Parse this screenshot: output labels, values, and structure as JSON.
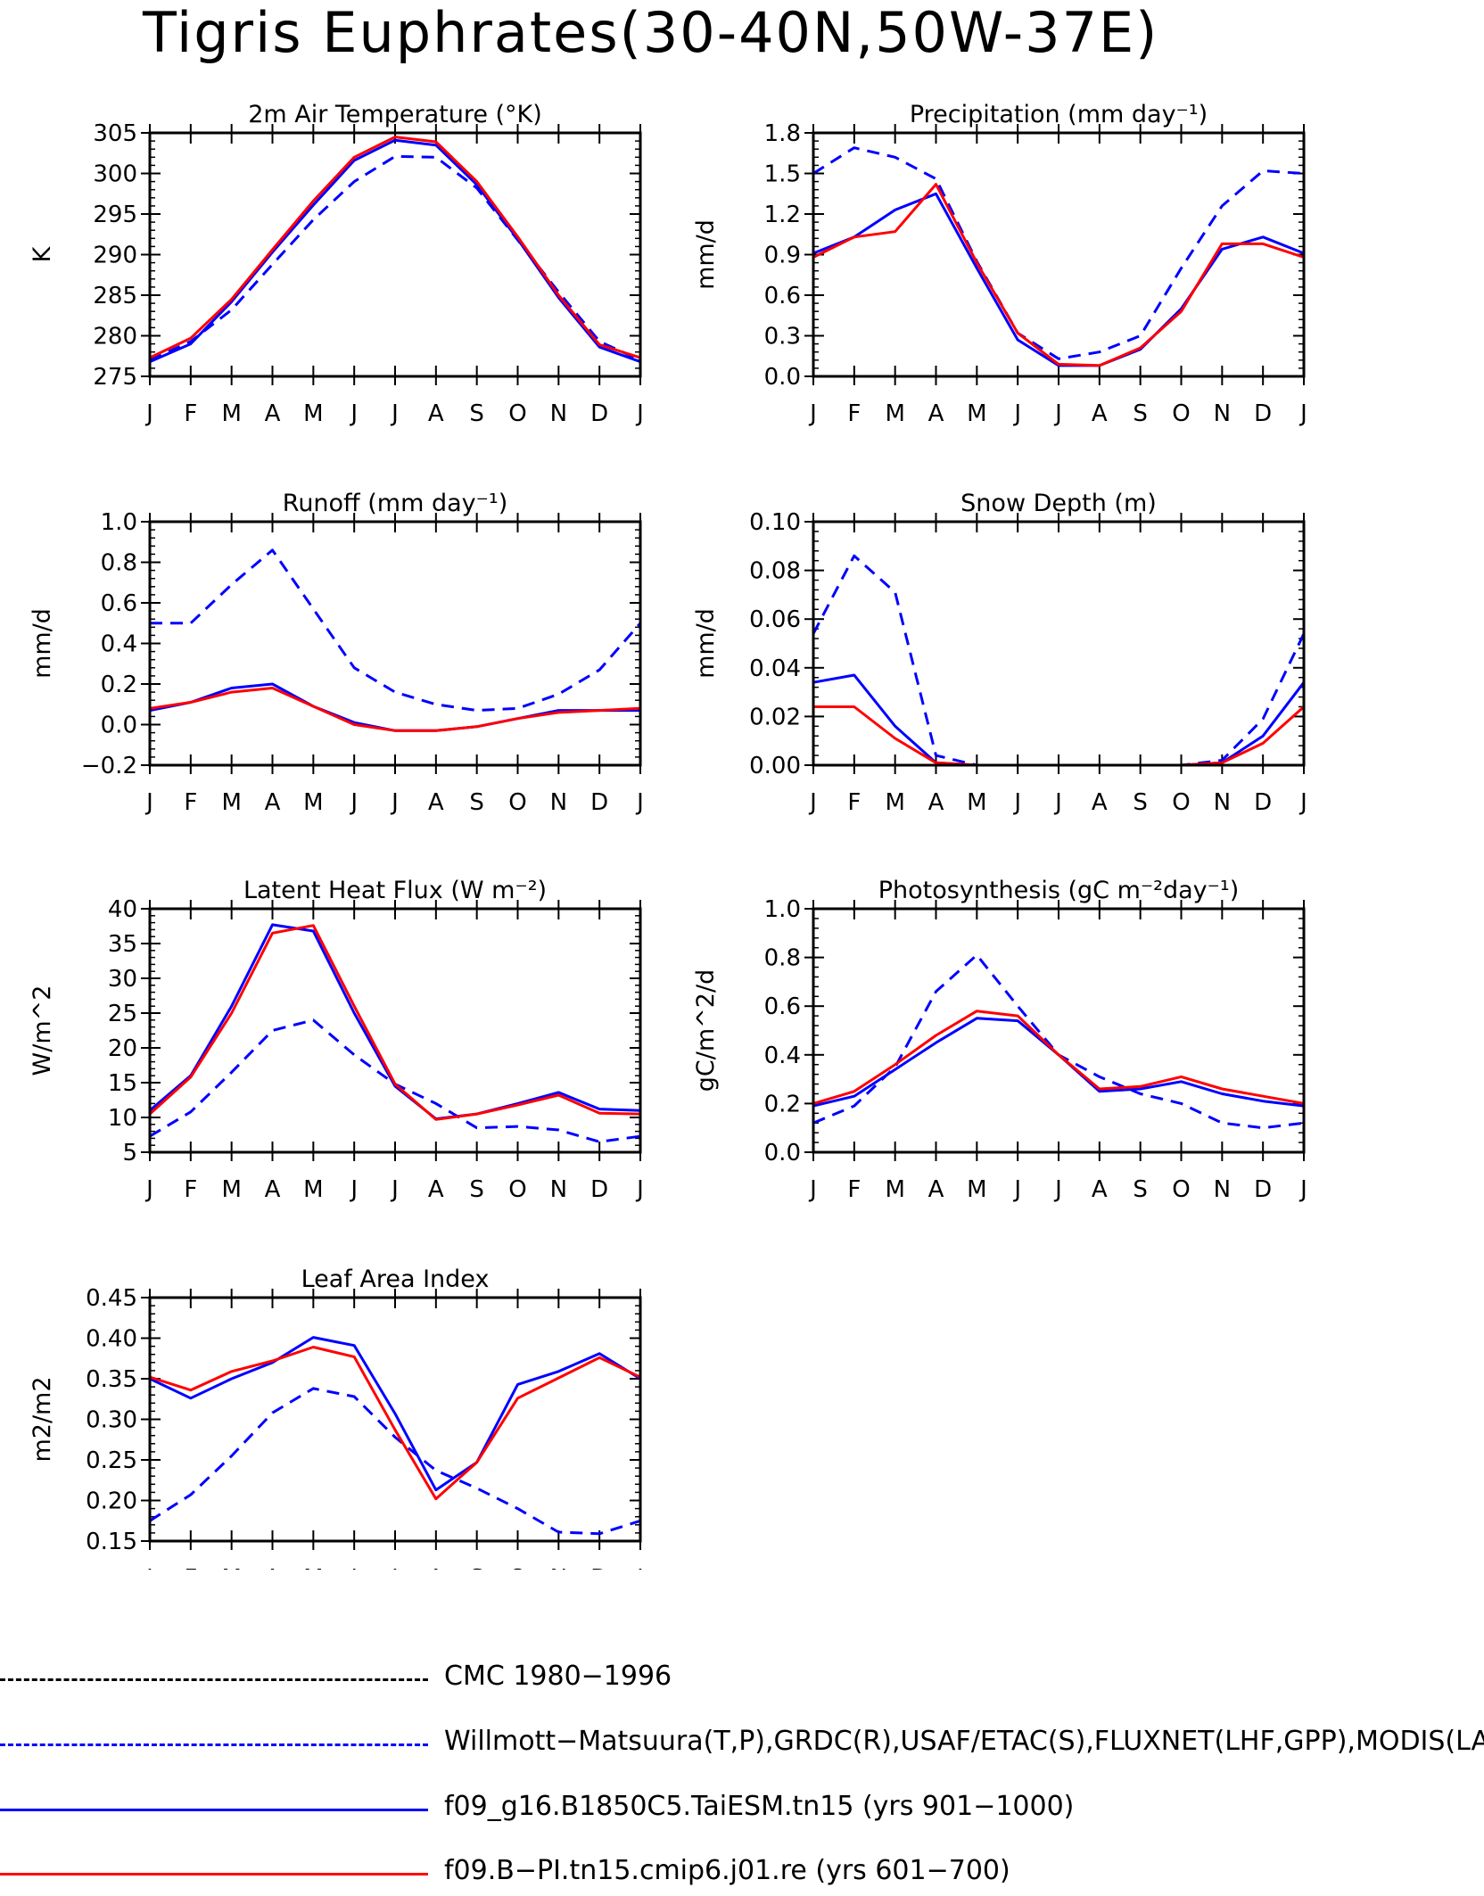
{
  "page": {
    "title": "Tigris Euphrates(30-40N,50W-37E)"
  },
  "legend": [
    {
      "label": "CMC 1980−1996",
      "color": "#000000",
      "dash": "dashed"
    },
    {
      "label": "Willmott−Matsuura(T,P),GRDC(R),USAF/ETAC(S),FLUXNET(LHF,GPP),MODIS(LAI)",
      "color": "#0000ff",
      "dash": "dashed"
    },
    {
      "label": "f09_g16.B1850C5.TaiESM.tn15 (yrs 901−1000)",
      "color": "#0000ff",
      "dash": "solid"
    },
    {
      "label": "f09.B−PI.tn15.cmip6.j01.re (yrs 601−700)",
      "color": "#ff0000",
      "dash": "solid"
    }
  ],
  "chart_data": [
    {
      "type": "line",
      "title": "2m Air Temperature (°K)",
      "ylabel": "K",
      "categories": [
        "J",
        "F",
        "M",
        "A",
        "M",
        "J",
        "J",
        "A",
        "S",
        "O",
        "N",
        "D",
        "J"
      ],
      "ylim": [
        275,
        305
      ],
      "yticks": [
        275,
        280,
        285,
        290,
        295,
        300,
        305
      ],
      "yticklabels": [
        "275",
        "280",
        "285",
        "290",
        "295",
        "300",
        "305"
      ],
      "series": [
        {
          "style": "blue-dashed",
          "values": [
            277.0,
            279.3,
            283.2,
            288.8,
            294.3,
            299.0,
            302.1,
            302.0,
            298.2,
            291.8,
            285.4,
            279.3,
            277.0
          ]
        },
        {
          "style": "blue-solid",
          "values": [
            276.8,
            279.0,
            284.2,
            290.3,
            296.1,
            301.6,
            304.1,
            303.5,
            298.6,
            291.9,
            284.7,
            278.6,
            276.8
          ]
        },
        {
          "style": "red-solid",
          "values": [
            277.3,
            279.7,
            284.5,
            290.6,
            296.6,
            302.0,
            304.5,
            303.9,
            299.0,
            292.2,
            285.0,
            278.9,
            277.3
          ]
        }
      ]
    },
    {
      "type": "line",
      "title": "Precipitation (mm day⁻¹)",
      "ylabel": "mm/d",
      "categories": [
        "J",
        "F",
        "M",
        "A",
        "M",
        "J",
        "J",
        "A",
        "S",
        "O",
        "N",
        "D",
        "J"
      ],
      "ylim": [
        0,
        1.8
      ],
      "yticks": [
        0,
        0.3,
        0.6,
        0.9,
        1.2,
        1.5,
        1.8
      ],
      "yticklabels": [
        "0.0",
        "0.3",
        "0.6",
        "0.9",
        "1.2",
        "1.5",
        "1.8"
      ],
      "series": [
        {
          "style": "blue-dashed",
          "values": [
            1.5,
            1.69,
            1.62,
            1.46,
            0.85,
            0.32,
            0.13,
            0.18,
            0.3,
            0.8,
            1.26,
            1.52,
            1.5
          ]
        },
        {
          "style": "blue-solid",
          "values": [
            0.91,
            1.03,
            1.23,
            1.35,
            0.8,
            0.27,
            0.08,
            0.08,
            0.2,
            0.5,
            0.94,
            1.03,
            0.91
          ]
        },
        {
          "style": "red-solid",
          "values": [
            0.88,
            1.03,
            1.07,
            1.42,
            0.84,
            0.32,
            0.09,
            0.08,
            0.21,
            0.48,
            0.98,
            0.98,
            0.88
          ]
        }
      ]
    },
    {
      "type": "line",
      "title": "Runoff (mm day⁻¹)",
      "ylabel": "mm/d",
      "categories": [
        "J",
        "F",
        "M",
        "A",
        "M",
        "J",
        "J",
        "A",
        "S",
        "O",
        "N",
        "D",
        "J"
      ],
      "ylim": [
        -0.2,
        1.0
      ],
      "yticks": [
        -0.2,
        0,
        0.2,
        0.4,
        0.6,
        0.8,
        1.0
      ],
      "yticklabels": [
        "−0.2",
        "0.0",
        "0.2",
        "0.4",
        "0.6",
        "0.8",
        "1.0"
      ],
      "series": [
        {
          "style": "blue-dashed",
          "values": [
            0.5,
            0.5,
            0.69,
            0.86,
            0.57,
            0.28,
            0.16,
            0.1,
            0.07,
            0.08,
            0.15,
            0.27,
            0.5
          ]
        },
        {
          "style": "blue-solid",
          "values": [
            0.07,
            0.11,
            0.18,
            0.2,
            0.09,
            0.01,
            -0.03,
            -0.03,
            -0.01,
            0.03,
            0.07,
            0.07,
            0.07
          ]
        },
        {
          "style": "red-solid",
          "values": [
            0.08,
            0.11,
            0.16,
            0.18,
            0.09,
            0.0,
            -0.03,
            -0.03,
            -0.01,
            0.03,
            0.06,
            0.07,
            0.08
          ]
        }
      ]
    },
    {
      "type": "line",
      "title": "Snow Depth (m)",
      "ylabel": "mm/d",
      "categories": [
        "J",
        "F",
        "M",
        "A",
        "M",
        "J",
        "J",
        "A",
        "S",
        "O",
        "N",
        "D",
        "J"
      ],
      "ylim": [
        0,
        0.1
      ],
      "yticks": [
        0,
        0.02,
        0.04,
        0.06,
        0.08,
        0.1
      ],
      "yticklabels": [
        "0.00",
        "0.02",
        "0.04",
        "0.06",
        "0.08",
        "0.10"
      ],
      "series": [
        {
          "style": "black-dashed",
          "values": [
            0,
            0,
            0,
            0,
            0,
            0,
            0,
            0,
            0,
            0,
            0,
            0,
            0
          ]
        },
        {
          "style": "blue-dashed",
          "values": [
            0.054,
            0.086,
            0.071,
            0.004,
            0.0,
            0.0,
            0.0,
            0.0,
            0.0,
            0.0,
            0.002,
            0.019,
            0.054
          ]
        },
        {
          "style": "blue-solid",
          "values": [
            0.034,
            0.037,
            0.016,
            0.001,
            0.0,
            0.0,
            0.0,
            0.0,
            0.0,
            0.0,
            0.001,
            0.012,
            0.034
          ]
        },
        {
          "style": "red-solid",
          "values": [
            0.024,
            0.024,
            0.011,
            0.001,
            0.0,
            0.0,
            0.0,
            0.0,
            0.0,
            0.0,
            0.001,
            0.009,
            0.024
          ]
        }
      ]
    },
    {
      "type": "line",
      "title": "Latent Heat Flux (W m⁻²)",
      "ylabel": "W/m^2",
      "categories": [
        "J",
        "F",
        "M",
        "A",
        "M",
        "J",
        "J",
        "A",
        "S",
        "O",
        "N",
        "D",
        "J"
      ],
      "ylim": [
        5,
        40
      ],
      "yticks": [
        5,
        10,
        15,
        20,
        25,
        30,
        35,
        40
      ],
      "yticklabels": [
        "5",
        "10",
        "15",
        "20",
        "25",
        "30",
        "35",
        "40"
      ],
      "series": [
        {
          "style": "blue-dashed",
          "values": [
            7.3,
            10.8,
            16.5,
            22.5,
            24.0,
            19.0,
            14.8,
            12.0,
            8.5,
            8.7,
            8.2,
            6.5,
            7.3
          ]
        },
        {
          "style": "blue-solid",
          "values": [
            11.0,
            16.0,
            26.0,
            37.7,
            36.8,
            25.0,
            14.5,
            9.8,
            10.5,
            12.0,
            13.6,
            11.2,
            11.0
          ]
        },
        {
          "style": "red-solid",
          "values": [
            10.5,
            15.8,
            25.0,
            36.5,
            37.6,
            26.0,
            14.8,
            9.7,
            10.5,
            11.8,
            13.2,
            10.6,
            10.5
          ]
        }
      ]
    },
    {
      "type": "line",
      "title": "Photosynthesis (gC m⁻²day⁻¹)",
      "ylabel": "gC/m^2/d",
      "categories": [
        "J",
        "F",
        "M",
        "A",
        "M",
        "J",
        "J",
        "A",
        "S",
        "O",
        "N",
        "D",
        "J"
      ],
      "ylim": [
        0,
        1.0
      ],
      "yticks": [
        0,
        0.2,
        0.4,
        0.6,
        0.8,
        1.0
      ],
      "yticklabels": [
        "0.0",
        "0.2",
        "0.4",
        "0.6",
        "0.8",
        "1.0"
      ],
      "series": [
        {
          "style": "blue-dashed",
          "values": [
            0.12,
            0.19,
            0.35,
            0.66,
            0.81,
            0.6,
            0.4,
            0.31,
            0.24,
            0.2,
            0.12,
            0.1,
            0.12
          ]
        },
        {
          "style": "blue-solid",
          "values": [
            0.19,
            0.23,
            0.34,
            0.45,
            0.55,
            0.54,
            0.4,
            0.25,
            0.26,
            0.29,
            0.24,
            0.21,
            0.19
          ]
        },
        {
          "style": "red-solid",
          "values": [
            0.2,
            0.25,
            0.36,
            0.48,
            0.58,
            0.56,
            0.4,
            0.26,
            0.27,
            0.31,
            0.26,
            0.23,
            0.2
          ]
        }
      ]
    },
    {
      "type": "line",
      "title": "Leaf Area Index",
      "ylabel": "m2/m2",
      "categories": [
        "J",
        "F",
        "M",
        "A",
        "M",
        "J",
        "J",
        "A",
        "S",
        "O",
        "N",
        "D",
        "J"
      ],
      "ylim": [
        0.15,
        0.45
      ],
      "yticks": [
        0.15,
        0.2,
        0.25,
        0.3,
        0.35,
        0.4,
        0.45
      ],
      "yticklabels": [
        "0.15",
        "0.20",
        "0.25",
        "0.30",
        "0.35",
        "0.40",
        "0.45"
      ],
      "series": [
        {
          "style": "blue-dashed",
          "values": [
            0.175,
            0.207,
            0.255,
            0.308,
            0.338,
            0.328,
            0.278,
            0.237,
            0.215,
            0.19,
            0.161,
            0.159,
            0.175
          ]
        },
        {
          "style": "blue-solid",
          "values": [
            0.35,
            0.326,
            0.35,
            0.37,
            0.401,
            0.391,
            0.307,
            0.213,
            0.247,
            0.343,
            0.359,
            0.381,
            0.35
          ]
        },
        {
          "style": "red-solid",
          "values": [
            0.352,
            0.336,
            0.359,
            0.372,
            0.389,
            0.377,
            0.287,
            0.202,
            0.247,
            0.326,
            0.351,
            0.376,
            0.352
          ]
        }
      ]
    }
  ]
}
